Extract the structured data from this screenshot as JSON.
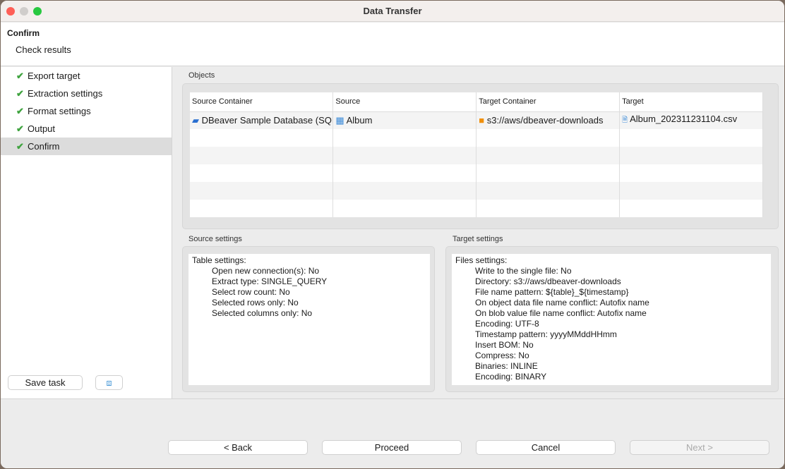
{
  "window": {
    "title": "Data Transfer"
  },
  "header": {
    "title": "Confirm",
    "subtitle": "Check results"
  },
  "sidebar": {
    "items": [
      {
        "label": "Export target"
      },
      {
        "label": "Extraction settings"
      },
      {
        "label": "Format settings"
      },
      {
        "label": "Output"
      },
      {
        "label": "Confirm",
        "selected": true
      }
    ],
    "save_task": "Save task"
  },
  "objects": {
    "label": "Objects",
    "columns": [
      "Source Container",
      "Source",
      "Target Container",
      "Target"
    ],
    "rows": [
      {
        "source_container": "DBeaver Sample Database (SQLite)",
        "source": "Album",
        "target_container": "s3://aws/dbeaver-downloads",
        "target": "Album_202311231104.csv"
      }
    ]
  },
  "source_settings": {
    "label": "Source settings",
    "heading": "Table settings:",
    "lines": [
      "Open new connection(s): No",
      "Extract type: SINGLE_QUERY",
      "Select row count: No",
      "Selected rows only: No",
      "Selected columns only: No"
    ]
  },
  "target_settings": {
    "label": "Target settings",
    "heading": "Files settings:",
    "lines": [
      "Write to the single file: No",
      "Directory: s3://aws/dbeaver-downloads",
      "File name pattern: ${table}_${timestamp}",
      "On object data file name conflict: Autofix name",
      "On blob value file name conflict: Autofix name",
      "Encoding: UTF-8",
      "Timestamp pattern: yyyyMMddHHmm",
      "Insert BOM: No",
      "Compress: No",
      "Binaries: INLINE",
      "Encoding: BINARY"
    ]
  },
  "buttons": {
    "back": "< Back",
    "proceed": "Proceed",
    "cancel": "Cancel",
    "next": "Next >"
  }
}
